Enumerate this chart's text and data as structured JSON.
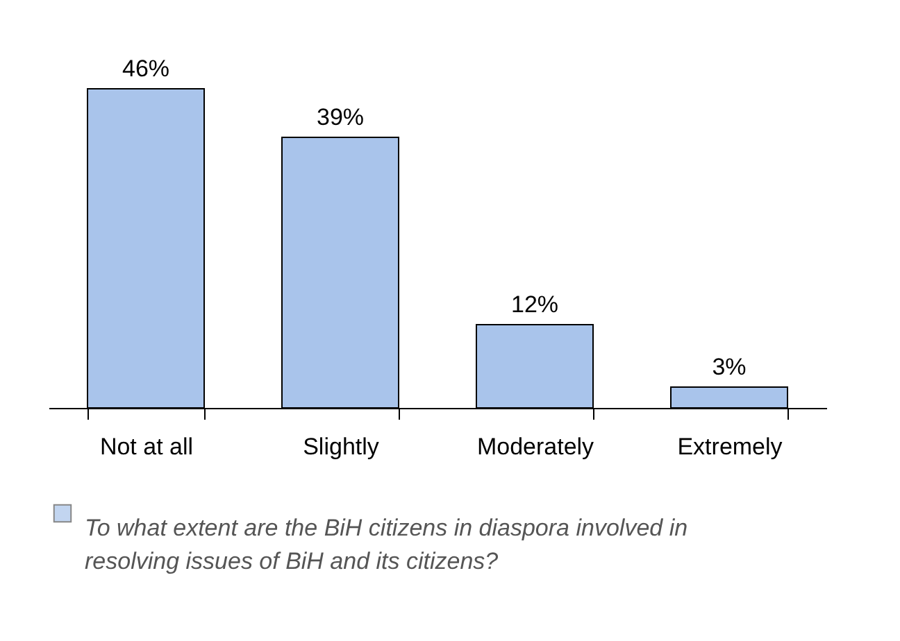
{
  "chart_data": {
    "type": "bar",
    "categories": [
      "Not at all",
      "Slightly",
      "Moderately",
      "Extremely"
    ],
    "series": [
      {
        "name": "To what extent are the BiH citizens in diaspora involved in resolving issues of BiH and its citizens?",
        "color": "#a9c4eb",
        "values": [
          46,
          39,
          12,
          3
        ],
        "value_labels": [
          "46%",
          "39%",
          "12%",
          "3%"
        ]
      }
    ],
    "legend": "bottom",
    "grid": false
  }
}
